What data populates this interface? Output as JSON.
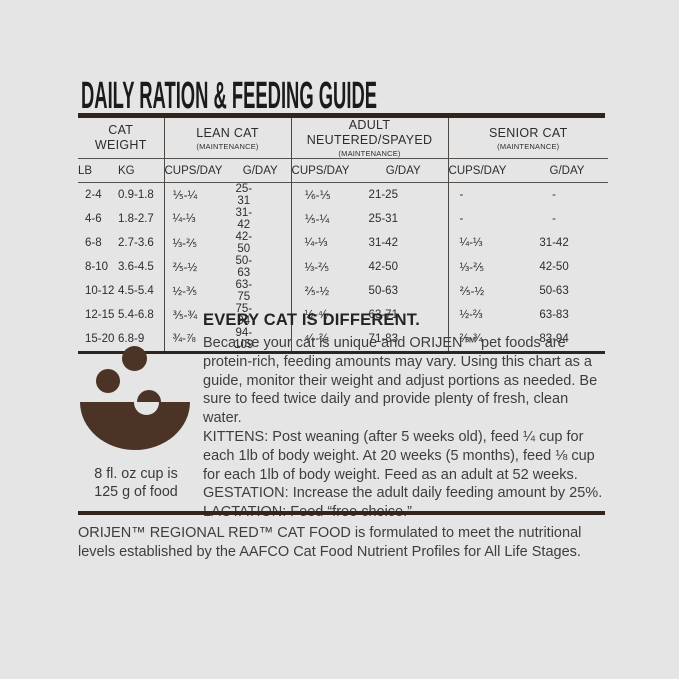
{
  "colors": {
    "background": "#e5e5e6",
    "ink": "#2d2d2d",
    "rule_brown": "#33241b",
    "bowl_brown": "#4b3426"
  },
  "title": "DAILY RATION & FEEDING GUIDE",
  "table": {
    "groups": [
      {
        "label": "CAT WEIGHT",
        "sub": ""
      },
      {
        "label": "LEAN CAT",
        "sub": "(MAINTENANCE)"
      },
      {
        "label": "ADULT NEUTERED/SPAYED",
        "sub": "(MAINTENANCE)"
      },
      {
        "label": "SENIOR CAT",
        "sub": "(MAINTENANCE)"
      }
    ],
    "columns": [
      "LB",
      "KG",
      "CUPS/DAY",
      "G/DAY",
      "CUPS/DAY",
      "G/DAY",
      "CUPS/DAY",
      "G/DAY"
    ],
    "rows": [
      [
        "2-4",
        "0.9-1.8",
        "⅕-¼",
        "25-31",
        "⅙-⅕",
        "21-25",
        "-",
        "-"
      ],
      [
        "4-6",
        "1.8-2.7",
        "¼-⅓",
        "31-42",
        "⅕-¼",
        "25-31",
        "-",
        "-"
      ],
      [
        "6-8",
        "2.7-3.6",
        "⅓-⅖",
        "42-50",
        "¼-⅓",
        "31-42",
        "¼-⅓",
        "31-42"
      ],
      [
        "8-10",
        "3.6-4.5",
        "⅖-½",
        "50-63",
        "⅓-⅖",
        "42-50",
        "⅓-⅖",
        "42-50"
      ],
      [
        "10-12",
        "4.5-5.4",
        "½-⅗",
        "63-75",
        "⅖-½",
        "50-63",
        "⅖-½",
        "50-63"
      ],
      [
        "12-15",
        "5.4-6.8",
        "⅗-¾",
        "75-94",
        "½-⁴⁄₇",
        "63-71",
        "½-⅔",
        "63-83"
      ],
      [
        "15-20",
        "6.8-9",
        "¾-⅞",
        "94-109",
        "⁴⁄₇-⅔",
        "71-83",
        "⅔-¾",
        "83-94"
      ]
    ]
  },
  "info": {
    "heading": "EVERY CAT IS DIFFERENT.",
    "paragraphs": [
      "Because your cat is unique and ORIJEN™ pet foods are protein-rich, feeding amounts may vary. Using this chart as a guide, monitor their weight and adjust portions as needed. Be sure to feed twice daily and provide plenty of fresh, clean water.",
      "KITTENS: Post weaning (after 5 weeks old), feed ¼ cup for each 1lb of body weight. At 20 weeks (5 months), feed ⅛ cup for each 1lb of body weight. Feed as an adult at 52 weeks.",
      "GESTATION: Increase the adult daily feeding amount by 25%.",
      "LACTATION: Feed “free choice.”"
    ],
    "cup_note_line1": "8 fl. oz cup is",
    "cup_note_line2": "125 g of food"
  },
  "icons": {
    "bowl": "food-bowl-with-kibble-icon"
  },
  "footer": {
    "text": "ORIJEN™ REGIONAL RED™ CAT FOOD is formulated to meet the nutritional levels established by the AAFCO Cat Food Nutrient Profiles for All Life Stages."
  }
}
